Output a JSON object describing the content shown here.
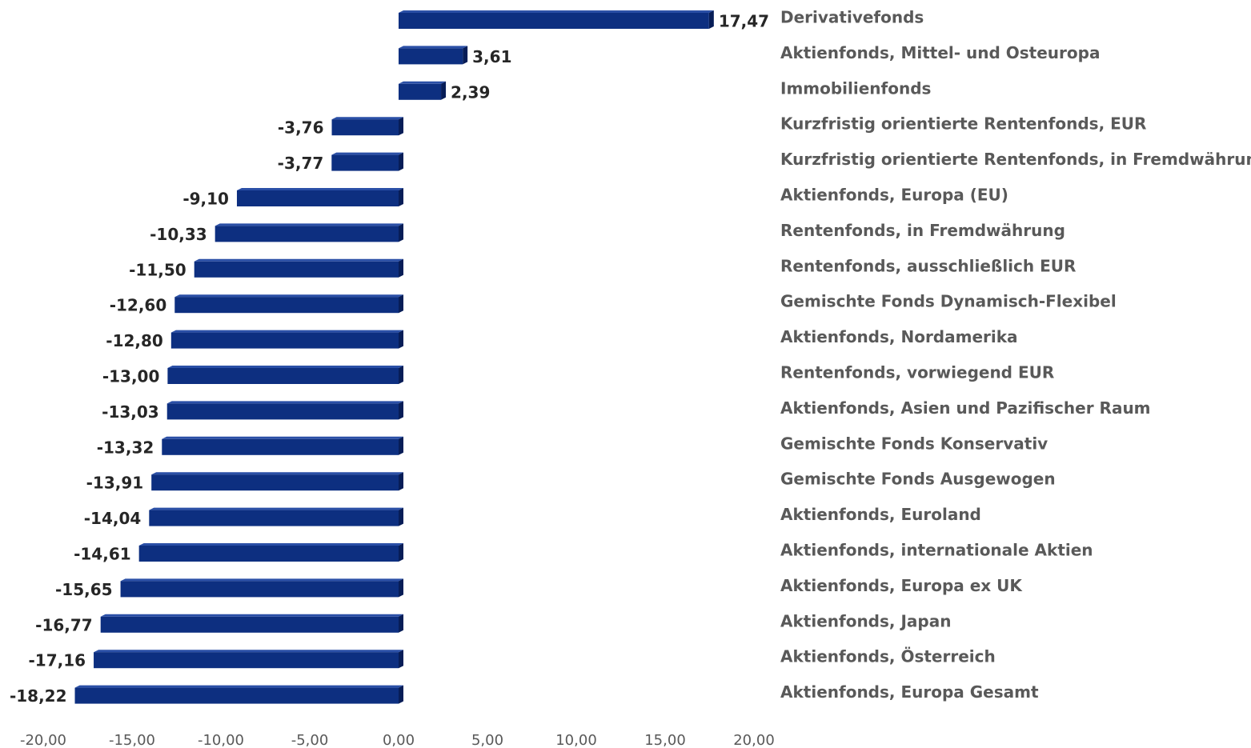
{
  "chart_data": {
    "type": "bar",
    "orientation": "horizontal",
    "style": "3d",
    "title": "",
    "xlabel": "",
    "ylabel": "",
    "xlim": [
      -20,
      20
    ],
    "grid": false,
    "legend": "none",
    "bar_color": "#0d2f80",
    "categories": [
      "Derivativefonds",
      "Aktienfonds, Mittel- und Osteuropa",
      "Immobilienfonds",
      "Kurzfristig orientierte Rentenfonds,  EUR",
      "Kurzfristig orientierte Rentenfonds, in Fremdwährung",
      "Aktienfonds, Europa (EU)",
      "Rentenfonds, in Fremdwährung",
      "Rentenfonds, ausschließlich EUR",
      "Gemischte Fonds Dynamisch-Flexibel",
      "Aktienfonds, Nordamerika",
      "Rentenfonds, vorwiegend EUR",
      "Aktienfonds, Asien und Pazifischer Raum",
      "Gemischte Fonds Konservativ",
      "Gemischte Fonds Ausgewogen",
      "Aktienfonds, Euroland",
      "Aktienfonds, internationale Aktien",
      "Aktienfonds, Europa ex UK",
      "Aktienfonds, Japan",
      "Aktienfonds, Österreich",
      "Aktienfonds, Europa Gesamt"
    ],
    "values": [
      17.47,
      3.61,
      2.39,
      -3.76,
      -3.77,
      -9.1,
      -10.33,
      -11.5,
      -12.6,
      -12.8,
      -13.0,
      -13.03,
      -13.32,
      -13.91,
      -14.04,
      -14.61,
      -15.65,
      -16.77,
      -17.16,
      -18.22
    ],
    "value_labels": [
      "17,47",
      "3,61",
      "2,39",
      "-3,76",
      "-3,77",
      "-9,10",
      "-10,33",
      "-11,50",
      "-12,60",
      "-12,80",
      "-13,00",
      "-13,03",
      "-13,32",
      "-13,91",
      "-14,04",
      "-14,61",
      "-15,65",
      "-16,77",
      "-17,16",
      "-18,22"
    ],
    "ticks": [
      -20,
      -15,
      -10,
      -5,
      0,
      5,
      10,
      15,
      20
    ],
    "tick_labels": [
      "-20,00",
      "-15,00",
      "-10,00",
      "-5,00",
      "0,00",
      "5,00",
      "10,00",
      "15,00",
      "20,00"
    ]
  }
}
